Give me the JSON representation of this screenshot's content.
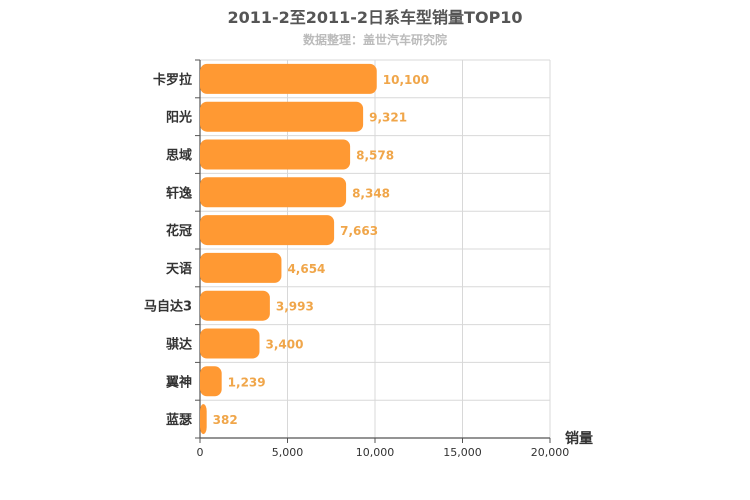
{
  "chart_data": {
    "type": "bar",
    "orientation": "horizontal",
    "title": "2011-2至2011-2日系车型销量TOP10",
    "subtitle": "数据整理：盖世汽车研究院",
    "categories": [
      "卡罗拉",
      "阳光",
      "思域",
      "轩逸",
      "花冠",
      "天语",
      "马自达3",
      "骐达",
      "翼神",
      "蓝瑟"
    ],
    "values": [
      10100,
      9321,
      8578,
      8348,
      7663,
      4654,
      3993,
      3400,
      1239,
      382
    ],
    "value_labels": [
      "10,100",
      "9,321",
      "8,578",
      "8,348",
      "7,663",
      "4,654",
      "3,993",
      "3,400",
      "1,239",
      "382"
    ],
    "xlabel": "销量",
    "ylabel": "",
    "xlim": [
      0,
      20000
    ],
    "ticks": [
      0,
      5000,
      10000,
      15000,
      20000
    ],
    "tick_labels": [
      "0",
      "5,000",
      "10,000",
      "15,000",
      "20,000"
    ],
    "grid": true,
    "legend": "none",
    "bar_color": "#ff9933",
    "label_color": "#f0a64a"
  }
}
